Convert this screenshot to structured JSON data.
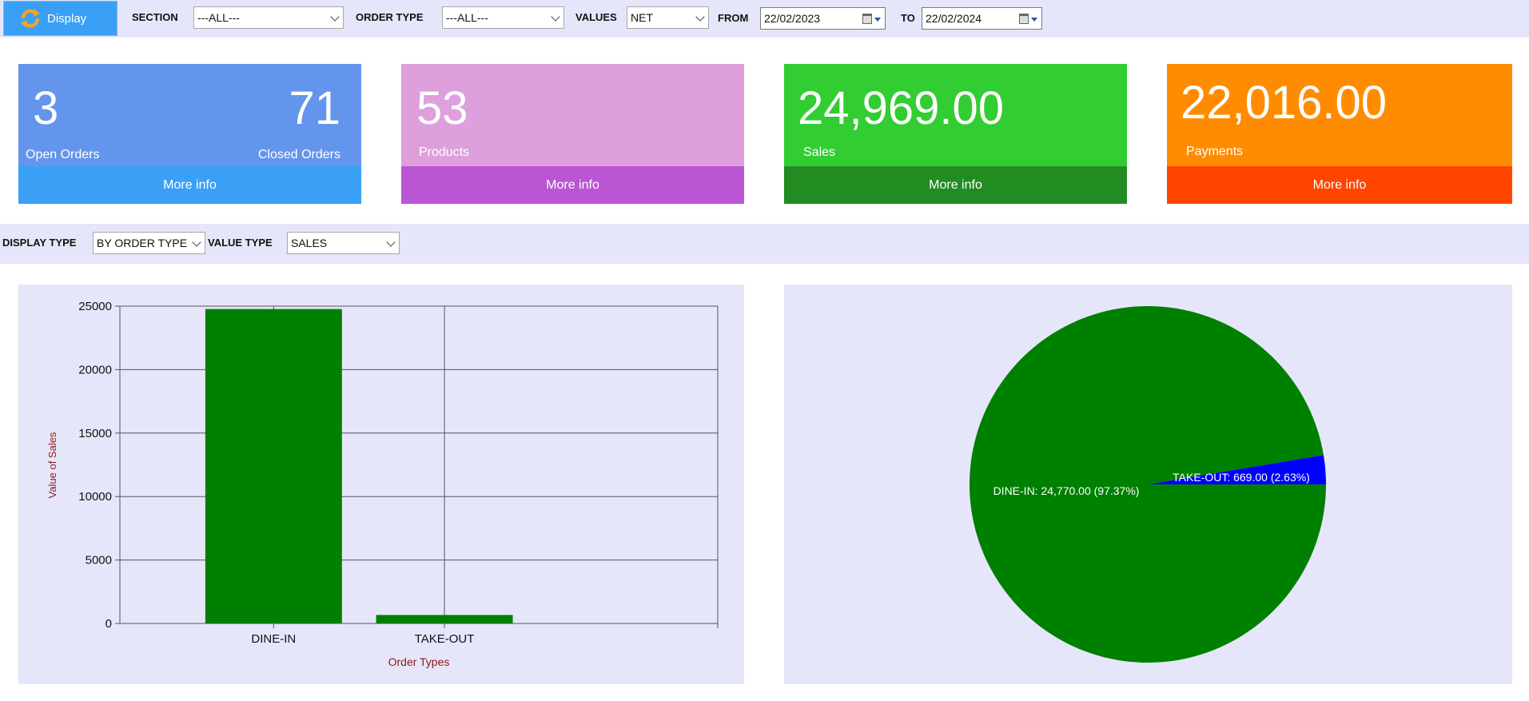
{
  "toolbar": {
    "display_label": "Display",
    "section_label": "SECTION",
    "section_value": "---ALL---",
    "order_type_label": "ORDER TYPE",
    "order_type_value": "---ALL---",
    "values_label": "VALUES",
    "values_value": "NET",
    "from_label": "FROM",
    "from_value": "22/02/2023",
    "to_label": "TO",
    "to_value": "22/02/2024"
  },
  "cards": [
    {
      "value": "3",
      "value2": "71",
      "label": "Open Orders",
      "label2": "Closed Orders",
      "more": "More info",
      "color": "#6495ed",
      "footer_color": "#3aa0f6"
    },
    {
      "value": "53",
      "label": "Products",
      "more": "More info",
      "color": "#dda0dd",
      "footer_color": "#ba55d3"
    },
    {
      "value": "24,969.00",
      "label": "Sales",
      "more": "More info",
      "color": "#32cd32",
      "footer_color": "#228b22"
    },
    {
      "value": "22,016.00",
      "label": "Payments",
      "more": "More info",
      "color": "#ff8c00",
      "footer_color": "#ff4500"
    }
  ],
  "filters": {
    "display_type_label": "DISPLAY TYPE",
    "display_type_value": "BY ORDER TYPE",
    "value_type_label": "VALUE TYPE",
    "value_type_value": "SALES"
  },
  "chart_data": [
    {
      "type": "bar",
      "categories": [
        "DINE-IN",
        "TAKE-OUT"
      ],
      "values": [
        24770,
        669
      ],
      "xlabel": "Order Types",
      "ylabel": "Value of Sales",
      "ylim": [
        0,
        25000
      ],
      "yticks": [
        0,
        5000,
        10000,
        15000,
        20000,
        25000
      ],
      "grid": true,
      "color": "#008000"
    },
    {
      "type": "pie",
      "slices": [
        {
          "label": "DINE-IN: 24,770.00 (97.37%)",
          "value": 24770,
          "percent": 97.37,
          "color": "#008000"
        },
        {
          "label": "TAKE-OUT: 669.00 (2.63%)",
          "value": 669,
          "percent": 2.63,
          "color": "#0000ff"
        }
      ]
    }
  ]
}
